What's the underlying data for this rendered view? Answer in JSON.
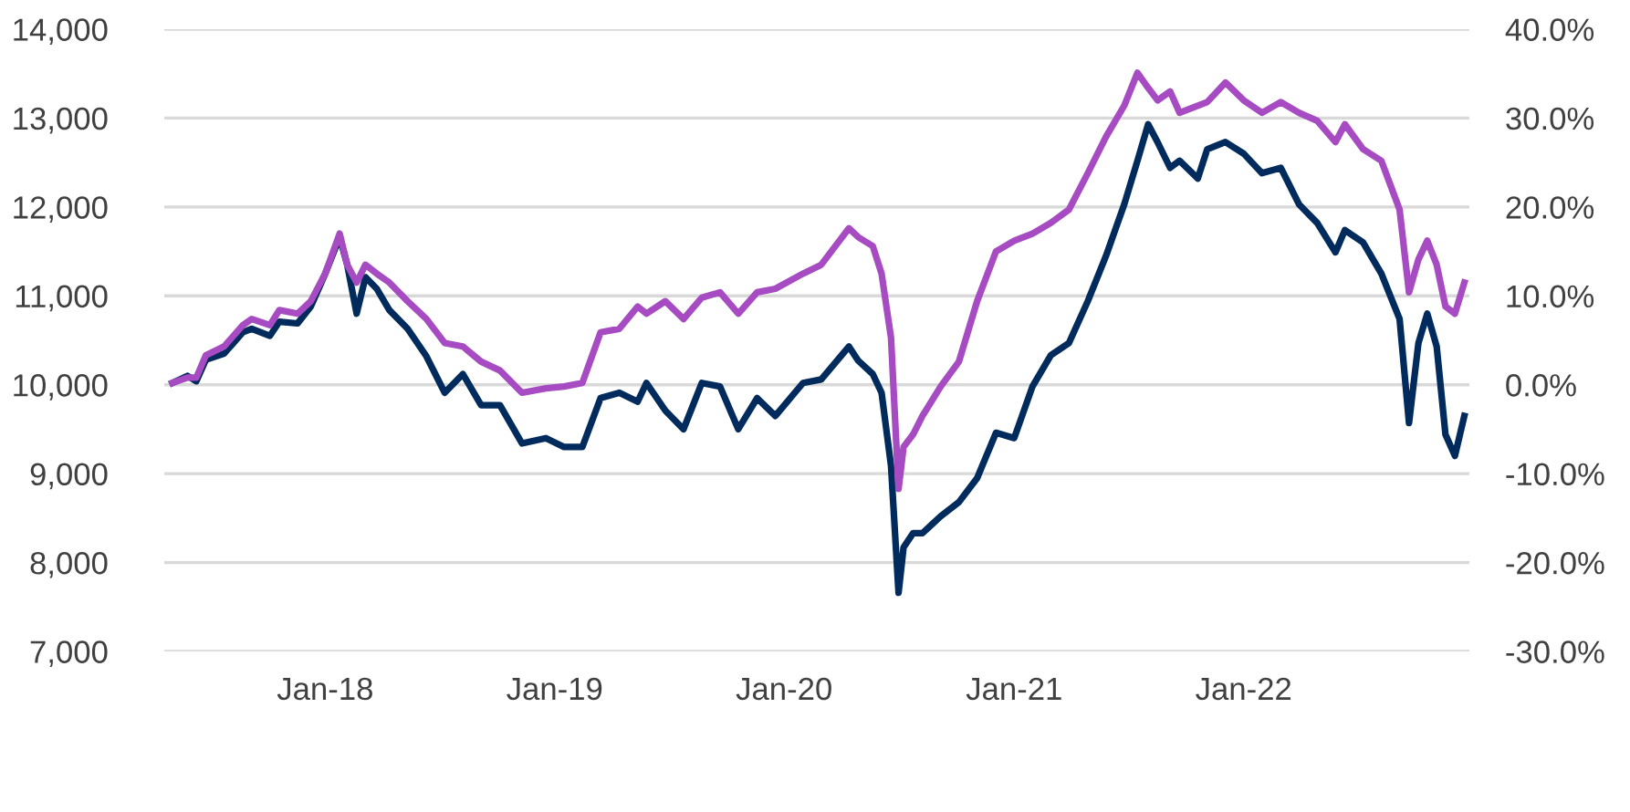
{
  "chart_data": {
    "type": "line",
    "x": [
      "2017-05-03",
      "2017-05-27",
      "2017-06-10",
      "2017-06-25",
      "2017-07-24",
      "2017-08-23",
      "2017-09-06",
      "2017-10-05",
      "2017-10-20",
      "2017-11-18",
      "2017-12-09",
      "2018-01-01",
      "2018-01-24",
      "2018-02-05",
      "2018-02-20",
      "2018-03-06",
      "2018-03-24",
      "2018-04-13",
      "2018-05-12",
      "2018-06-11",
      "2018-07-10",
      "2018-08-08",
      "2018-09-06",
      "2018-10-06",
      "2018-11-10",
      "2018-12-18",
      "2019-01-16",
      "2019-02-14",
      "2019-03-15",
      "2019-04-14",
      "2019-05-13",
      "2019-05-27",
      "2019-06-26",
      "2019-07-25",
      "2019-08-23",
      "2019-09-21",
      "2019-10-20",
      "2019-11-19",
      "2019-12-18",
      "2020-01-31",
      "2020-02-29",
      "2020-04-13",
      "2020-04-28",
      "2020-05-21",
      "2020-06-04",
      "2020-06-19",
      "2020-07-01",
      "2020-07-09",
      "2020-07-24",
      "2020-08-08",
      "2020-09-06",
      "2020-10-05",
      "2020-11-03",
      "2020-12-03",
      "2021-01-01",
      "2021-01-30",
      "2021-02-28",
      "2021-03-29",
      "2021-04-28",
      "2021-05-27",
      "2021-06-25",
      "2021-07-16",
      "2021-08-02",
      "2021-08-17",
      "2021-09-06",
      "2021-09-21",
      "2021-10-20",
      "2021-11-04",
      "2021-12-03",
      "2022-01-01",
      "2022-01-30",
      "2022-03-01",
      "2022-03-30",
      "2022-04-28",
      "2022-05-27",
      "2022-06-11",
      "2022-07-10",
      "2022-08-08",
      "2022-09-06",
      "2022-09-21",
      "2022-10-06",
      "2022-10-20",
      "2022-11-04",
      "2022-11-18",
      "2022-12-03",
      "2022-12-18"
    ],
    "series": [
      {
        "color": "#002b5c",
        "values": [
          10020,
          10100,
          10040,
          10280,
          10350,
          10590,
          10630,
          10550,
          10710,
          10690,
          10880,
          11250,
          11660,
          11350,
          10800,
          11210,
          11080,
          10840,
          10630,
          10320,
          9910,
          10120,
          9770,
          9770,
          9340,
          9400,
          9300,
          9300,
          9850,
          9910,
          9810,
          10020,
          9710,
          9500,
          10020,
          9980,
          9500,
          9850,
          9650,
          10020,
          10060,
          10430,
          10270,
          10120,
          9910,
          9090,
          7660,
          8170,
          8330,
          8330,
          8520,
          8680,
          8950,
          9460,
          9400,
          9980,
          10330,
          10470,
          10940,
          11450,
          12030,
          12520,
          12930,
          12730,
          12440,
          12520,
          12320,
          12650,
          12730,
          12600,
          12380,
          12440,
          12030,
          11820,
          11490,
          11740,
          11600,
          11250,
          10740,
          9570,
          10470,
          10800,
          10430,
          9440,
          9200,
          9650
        ]
      },
      {
        "color": "#a64bc2",
        "values": [
          10020,
          10080,
          10080,
          10330,
          10430,
          10670,
          10740,
          10670,
          10840,
          10800,
          10940,
          11250,
          11700,
          11350,
          11150,
          11350,
          11250,
          11150,
          10940,
          10740,
          10470,
          10430,
          10260,
          10160,
          9910,
          9960,
          9980,
          10020,
          10590,
          10630,
          10880,
          10800,
          10940,
          10740,
          10980,
          11040,
          10800,
          11040,
          11080,
          11250,
          11350,
          11760,
          11660,
          11560,
          11250,
          10530,
          8830,
          9300,
          9440,
          9650,
          9980,
          10260,
          10940,
          11500,
          11620,
          11700,
          11820,
          11970,
          12380,
          12790,
          13140,
          13510,
          13340,
          13200,
          13300,
          13060,
          13140,
          13180,
          13400,
          13200,
          13060,
          13180,
          13060,
          12970,
          12730,
          12930,
          12650,
          12520,
          11970,
          11040,
          11410,
          11620,
          11350,
          10880,
          10800,
          11150
        ]
      }
    ],
    "xlim": [
      "2017-04-20",
      "2022-12-26"
    ],
    "xticks": [
      {
        "value": "2018-01-01",
        "label": "Jan-18"
      },
      {
        "value": "2019-01-01",
        "label": "Jan-19"
      },
      {
        "value": "2020-01-01",
        "label": "Jan-20"
      },
      {
        "value": "2021-01-01",
        "label": "Jan-21"
      },
      {
        "value": "2022-01-01",
        "label": "Jan-22"
      }
    ],
    "ylim": [
      7000,
      14000
    ],
    "yticks": [
      {
        "value": 7000,
        "label": "7,000"
      },
      {
        "value": 8000,
        "label": "8,000"
      },
      {
        "value": 9000,
        "label": "9,000"
      },
      {
        "value": 10000,
        "label": "10,000"
      },
      {
        "value": 11000,
        "label": "11,000"
      },
      {
        "value": 12000,
        "label": "12,000"
      },
      {
        "value": 13000,
        "label": "13,000"
      },
      {
        "value": 14000,
        "label": "14,000"
      }
    ],
    "y2lim": [
      -30,
      40
    ],
    "y2ticks": [
      {
        "value": -30,
        "label": "-30.0%"
      },
      {
        "value": -20,
        "label": "-20.0%"
      },
      {
        "value": -10,
        "label": "-10.0%"
      },
      {
        "value": 0,
        "label": "0.0%"
      },
      {
        "value": 10,
        "label": "10.0%"
      },
      {
        "value": 20,
        "label": "20.0%"
      },
      {
        "value": 30,
        "label": "30.0%"
      },
      {
        "value": 40,
        "label": "40.0%"
      }
    ],
    "grid": "y",
    "line_style": "solid",
    "marker": "none"
  }
}
